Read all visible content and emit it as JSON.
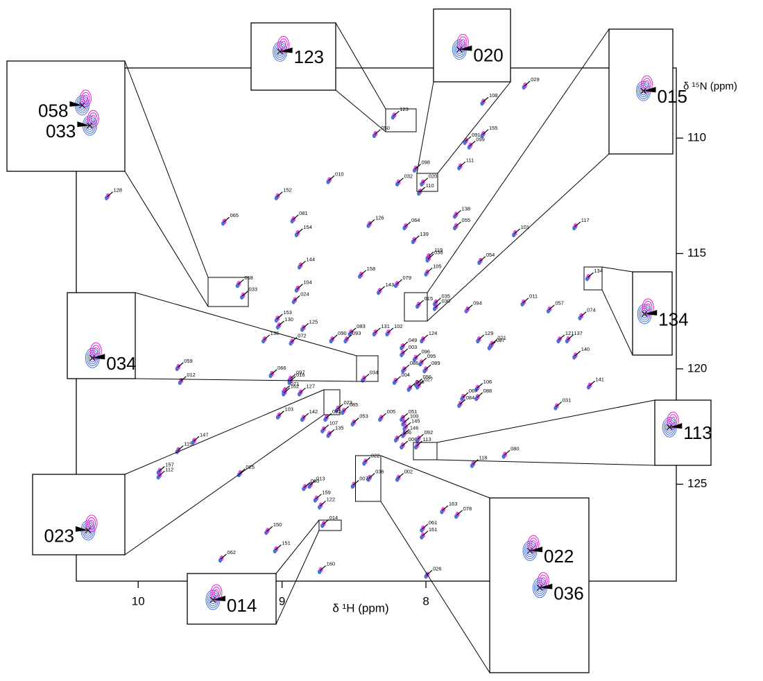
{
  "chart_data": {
    "type": "scatter",
    "x_label": "δ ¹H (ppm)",
    "y_label": "δ ¹⁵N (ppm)",
    "color": "#4a6fd6",
    "xlim": [
      10.43,
      6.26
    ],
    "ylim": [
      129.2,
      106.96
    ],
    "xticks": [
      10,
      9,
      8
    ],
    "yticks": [
      110,
      115,
      120,
      125
    ],
    "labels": [
      "123",
      "029",
      "108",
      "050",
      "155",
      "091",
      "099",
      "128",
      "010",
      "098",
      "032",
      "020",
      "110",
      "111",
      "152",
      "065",
      "081",
      "154",
      "126",
      "064",
      "138",
      "055",
      "101",
      "117",
      "139",
      "119",
      "038",
      "054",
      "144",
      "158",
      "105",
      "079",
      "143",
      "134",
      "058",
      "033",
      "104",
      "024",
      "035",
      "015",
      "030",
      "011",
      "057",
      "094",
      "074",
      "153",
      "130",
      "125",
      "083",
      "131",
      "102",
      "090",
      "093",
      "136",
      "072",
      "124",
      "129",
      "087",
      "021",
      "121",
      "137",
      "049",
      "003",
      "096",
      "095",
      "086",
      "089",
      "140",
      "059",
      "034",
      "066",
      "097",
      "016",
      "012",
      "056",
      "046",
      "027",
      "004",
      "106",
      "071",
      "162",
      "127",
      "141",
      "067",
      "088",
      "023",
      "085",
      "084",
      "031",
      "082",
      "103",
      "142",
      "005",
      "051",
      "100",
      "145",
      "107",
      "135",
      "053",
      "146",
      "115",
      "147",
      "156",
      "006",
      "092",
      "113",
      "080",
      "118",
      "157",
      "112",
      "025",
      "022",
      "036",
      "007",
      "002",
      "013",
      "060",
      "159",
      "122",
      "078",
      "163",
      "061",
      "161",
      "150",
      "014",
      "151",
      "062",
      "160",
      "026"
    ],
    "x": [
      8.23,
      7.32,
      7.61,
      8.36,
      7.61,
      7.73,
      7.7,
      10.22,
      8.68,
      8.08,
      8.2,
      8.03,
      8.05,
      7.77,
      9.04,
      9.41,
      8.93,
      8.9,
      8.4,
      8.15,
      7.8,
      7.8,
      7.39,
      6.97,
      8.09,
      7.99,
      7.99,
      7.63,
      8.88,
      8.46,
      8.0,
      8.21,
      8.33,
      6.88,
      9.31,
      9.28,
      8.9,
      8.92,
      7.94,
      8.06,
      7.94,
      7.33,
      7.15,
      7.72,
      6.93,
      9.04,
      9.03,
      8.86,
      8.53,
      8.36,
      8.27,
      8.66,
      8.56,
      9.13,
      8.94,
      8.03,
      7.64,
      7.56,
      7.55,
      7.08,
      7.02,
      8.17,
      8.17,
      8.08,
      8.04,
      8.16,
      8.01,
      6.97,
      9.73,
      8.44,
      9.08,
      8.95,
      8.95,
      9.71,
      8.07,
      8.12,
      8.06,
      8.22,
      7.65,
      8.99,
      8.99,
      8.88,
      6.87,
      7.75,
      7.65,
      8.62,
      8.58,
      7.77,
      7.1,
      8.7,
      9.03,
      8.86,
      8.32,
      8.17,
      8.16,
      8.15,
      8.72,
      8.68,
      8.51,
      8.16,
      9.73,
      9.62,
      8.21,
      8.17,
      8.06,
      8.07,
      7.46,
      7.68,
      9.86,
      9.86,
      9.3,
      8.43,
      8.4,
      8.51,
      8.2,
      8.81,
      8.85,
      8.77,
      8.74,
      7.79,
      7.89,
      8.03,
      8.03,
      9.11,
      8.72,
      9.05,
      9.43,
      8.74,
      8.0
    ],
    "y": [
      109.1,
      107.8,
      108.5,
      109.9,
      109.9,
      110.2,
      110.4,
      112.6,
      111.9,
      111.4,
      112.0,
      112.0,
      112.4,
      111.3,
      112.6,
      113.7,
      113.6,
      114.2,
      113.8,
      113.9,
      113.4,
      113.9,
      114.2,
      113.9,
      114.5,
      115.2,
      115.3,
      115.4,
      115.6,
      116.0,
      115.9,
      116.4,
      116.7,
      116.1,
      116.4,
      116.9,
      116.6,
      117.1,
      117.2,
      117.3,
      117.4,
      117.2,
      117.5,
      117.5,
      117.8,
      117.9,
      118.2,
      118.3,
      118.5,
      118.5,
      118.5,
      118.8,
      118.8,
      118.8,
      118.9,
      118.8,
      118.8,
      119.1,
      119.0,
      118.8,
      118.8,
      119.1,
      119.4,
      119.6,
      119.8,
      120.1,
      120.1,
      119.5,
      120.0,
      120.5,
      120.3,
      120.5,
      120.6,
      120.6,
      120.7,
      120.9,
      120.8,
      120.6,
      120.9,
      121.0,
      121.1,
      121.1,
      120.8,
      121.3,
      121.3,
      121.8,
      121.9,
      121.6,
      121.7,
      122.2,
      122.1,
      122.2,
      122.2,
      122.2,
      122.4,
      122.6,
      122.7,
      122.9,
      122.4,
      122.9,
      123.6,
      123.2,
      123.1,
      123.4,
      123.1,
      123.4,
      123.8,
      124.2,
      124.5,
      124.7,
      124.6,
      124.1,
      124.8,
      125.1,
      124.8,
      125.1,
      125.2,
      125.7,
      126.0,
      126.4,
      126.2,
      127.0,
      127.3,
      127.1,
      126.8,
      127.9,
      128.3,
      128.8,
      129.0
    ]
  }
}
